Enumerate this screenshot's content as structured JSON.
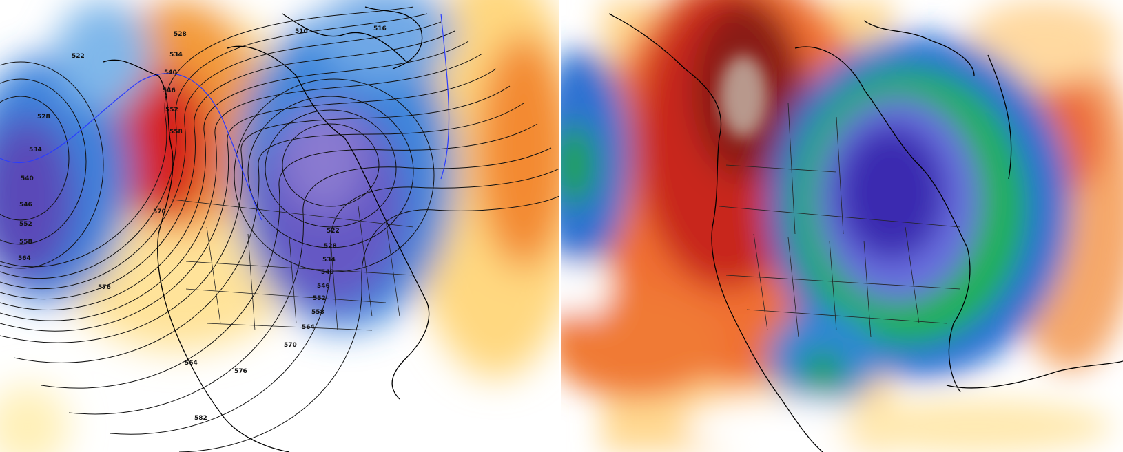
{
  "left_panel": {
    "map_type": "500 mb height contours with height anomaly shading",
    "contour_labels": [
      "510",
      "516",
      "522",
      "528",
      "534",
      "540",
      "546",
      "552",
      "558",
      "564",
      "570",
      "576",
      "582",
      "522",
      "528",
      "534",
      "540",
      "546",
      "552",
      "558",
      "564",
      "570",
      "576",
      "528",
      "534",
      "540",
      "546",
      "552",
      "558",
      "564"
    ],
    "colors": {
      "strong_positive": "#c8001e",
      "positive": "#f07a2a",
      "weak_positive": "#ffe9a0",
      "negative": "#2f6fd6",
      "strong_negative": "#5a3cb0",
      "contour": "#111111",
      "highlight_contour": "#2a3cff"
    }
  },
  "right_panel": {
    "map_type": "temperature anomaly shading",
    "colors": {
      "extreme_warm": "#6b4a48",
      "warm_core": "#b11a12",
      "warm": "#f06a2a",
      "mild": "#ffe0a0",
      "neutral": "#ffffff",
      "cool": "#8ec8f0",
      "cold": "#2a6fd6",
      "very_cold": "#20b24a",
      "extreme_cold": "#3a2cb0"
    }
  }
}
